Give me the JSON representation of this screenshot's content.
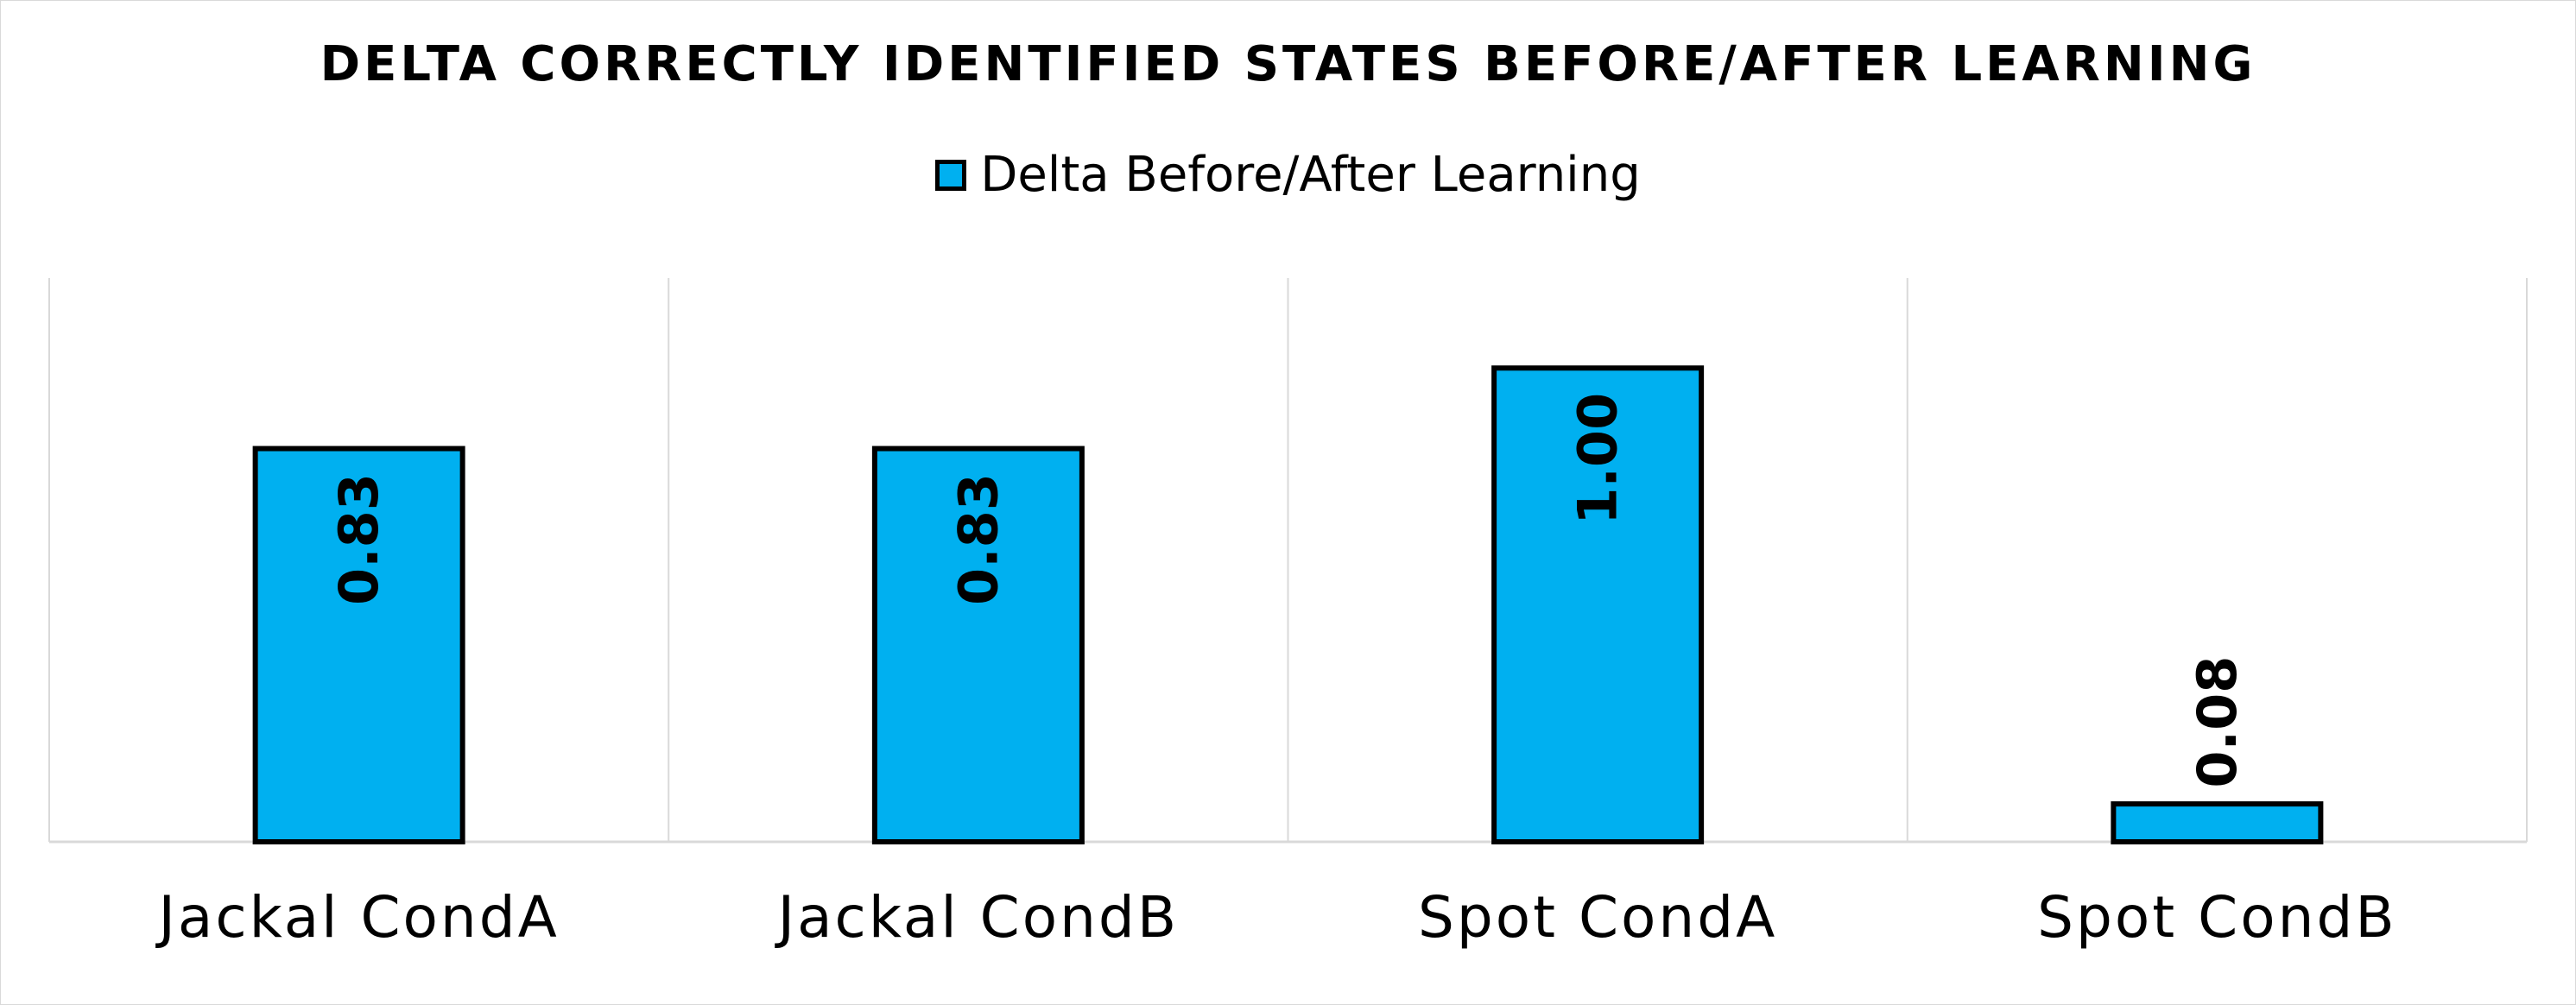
{
  "chart_data": {
    "type": "bar",
    "title": "DELTA CORRECTLY IDENTIFIED STATES BEFORE/AFTER LEARNING",
    "categories": [
      "Jackal CondA",
      "Jackal CondB",
      "Spot CondA",
      "Spot CondB"
    ],
    "series": [
      {
        "name": "Delta Before/After Learning",
        "values": [
          0.83,
          0.83,
          1.0,
          0.08
        ],
        "labels": [
          "0.83",
          "0.83",
          "1.00",
          "0.08"
        ]
      }
    ],
    "ylim": [
      0,
      1.19
    ],
    "grid": "vertical category separators",
    "legend_position": "top",
    "colors": {
      "bar_fill": "#00b0f0",
      "bar_stroke": "#000000",
      "grid": "#d9d9d9"
    }
  }
}
